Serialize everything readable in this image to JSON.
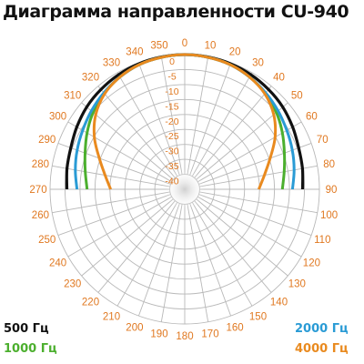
{
  "title": "Диаграмма направленности CU-940",
  "chart_data": {
    "type": "polar",
    "title": "Диаграмма направленности CU-940",
    "angle_ticks": [
      "0",
      "10",
      "20",
      "30",
      "40",
      "50",
      "60",
      "70",
      "80",
      "90",
      "100",
      "110",
      "120",
      "130",
      "140",
      "150",
      "160",
      "170",
      "180",
      "190",
      "200",
      "210",
      "220",
      "230",
      "240",
      "250",
      "260",
      "270",
      "280",
      "290",
      "300",
      "310",
      "320",
      "330",
      "340",
      "350"
    ],
    "radial_ticks": [
      "0",
      "-5",
      "-10",
      "-15",
      "-20",
      "-25",
      "-30",
      "-35",
      "-40"
    ],
    "radial_range_db": [
      -40,
      0
    ],
    "angular_direction": "clockwise",
    "zero_angle": "top",
    "grid": true,
    "series": [
      {
        "name": "500 Гц",
        "color": "#111111",
        "angles": [
          270,
          280,
          290,
          300,
          310,
          320,
          330,
          340,
          350,
          0,
          10,
          20,
          30,
          40,
          50,
          60,
          70,
          80,
          90
        ],
        "values": [
          -5,
          -4.5,
          -4,
          -3,
          -2,
          -1.3,
          -0.7,
          -0.3,
          -0.1,
          0,
          -0.1,
          -0.3,
          -0.7,
          -1.3,
          -2,
          -3,
          -4,
          -4.5,
          -5
        ]
      },
      {
        "name": "1000 Гц",
        "color": "#4caf2e",
        "angles": [
          270,
          280,
          290,
          300,
          310,
          320,
          330,
          340,
          350,
          0,
          10,
          20,
          30,
          40,
          50,
          60,
          70,
          80,
          90
        ],
        "values": [
          -11,
          -10,
          -8.5,
          -6.5,
          -4.5,
          -2.8,
          -1.5,
          -0.6,
          -0.2,
          0,
          -0.2,
          -0.6,
          -1.5,
          -2.8,
          -4.5,
          -6.5,
          -8.5,
          -10,
          -11
        ]
      },
      {
        "name": "2000 Гц",
        "color": "#2a9bd5",
        "angles": [
          270,
          280,
          290,
          300,
          310,
          320,
          330,
          340,
          350,
          0,
          10,
          20,
          30,
          40,
          50,
          60,
          70,
          80,
          90
        ],
        "values": [
          -8,
          -7,
          -6,
          -5,
          -3.8,
          -2.6,
          -1.5,
          -0.6,
          -0.2,
          0,
          -0.2,
          -0.6,
          -1.5,
          -2.6,
          -3.8,
          -5,
          -6,
          -7,
          -8
        ]
      },
      {
        "name": "4000 Гц",
        "color": "#e98a1f",
        "angles": [
          270,
          280,
          290,
          300,
          310,
          320,
          330,
          340,
          350,
          0,
          10,
          20,
          30,
          40,
          50,
          60,
          70,
          80,
          90
        ],
        "values": [
          -18,
          -16,
          -13,
          -9,
          -5.5,
          -3,
          -1.5,
          -0.6,
          -0.2,
          0,
          -0.2,
          -0.6,
          -1.5,
          -3,
          -5.5,
          -9,
          -13,
          -16,
          -18
        ]
      }
    ]
  },
  "legend": {
    "items": [
      {
        "label": "500 Гц",
        "color": "#111111"
      },
      {
        "label": "1000 Гц",
        "color": "#4caf2e"
      },
      {
        "label": "2000 Гц",
        "color": "#2a9bd5"
      },
      {
        "label": "4000 Гц",
        "color": "#e98a1f"
      }
    ]
  },
  "colors": {
    "grid": "#b8b8b8",
    "tick_labels": "#e07820"
  }
}
